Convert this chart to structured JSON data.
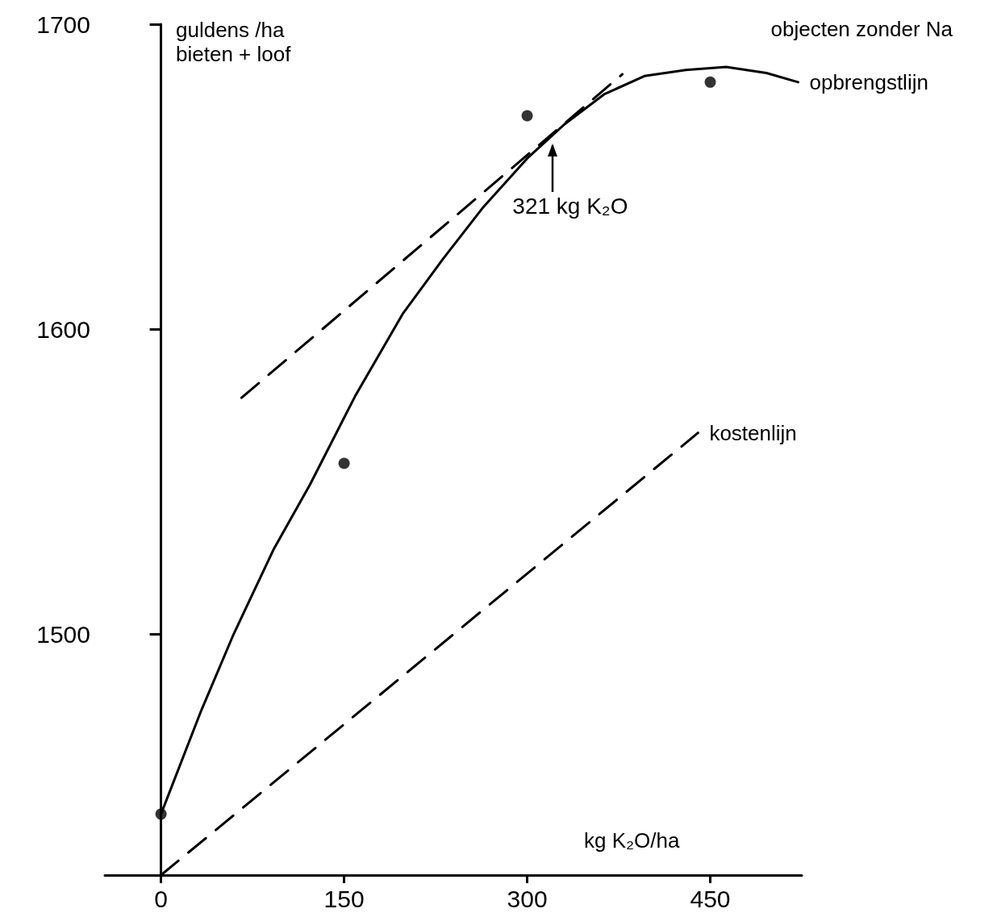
{
  "chart_data": {
    "type": "line",
    "title": "objecten zonder Na",
    "xlabel": "kg K₂O/ha",
    "ylabel": "guldens /ha bieten + loof",
    "annotations": [
      {
        "text": "321 kg K₂O",
        "x": 321,
        "y": 1662
      }
    ],
    "xlim": [
      -46,
      525
    ],
    "xticks": [
      0,
      150,
      300,
      450
    ],
    "ylim": [
      1421,
      1700
    ],
    "yticks": [
      1500,
      1600,
      1700
    ],
    "series": [
      {
        "name": "opbrengstlijn",
        "type": "line",
        "color": "#000000",
        "line_style": "solid",
        "marker": "none",
        "x": [
          0,
          33,
          59.5,
          92.5,
          122,
          159,
          198,
          231,
          264,
          300,
          330,
          363,
          396,
          430,
          463,
          496,
          522
        ],
        "values": [
          1441,
          1475,
          1500,
          1528,
          1549,
          1578,
          1605,
          1623,
          1640,
          1656,
          1667,
          1677,
          1683,
          1685,
          1686,
          1684,
          1681
        ]
      },
      {
        "type": "scatter",
        "color": "#000000",
        "marker": "circle",
        "x": [
          0,
          150,
          300,
          450
        ],
        "values": [
          1441,
          1556,
          1670,
          1681
        ]
      },
      {
        "type": "line",
        "color": "#000000",
        "line_style": "dashed",
        "marker": "none",
        "x": [
          66,
          378
        ],
        "values": [
          1577.5,
          1683.6
        ]
      },
      {
        "name": "kostenlijn",
        "type": "line",
        "color": "#000000",
        "line_style": "dashed",
        "marker": "none",
        "x": [
          0,
          440
        ],
        "values": [
          1421,
          1566
        ]
      }
    ]
  }
}
